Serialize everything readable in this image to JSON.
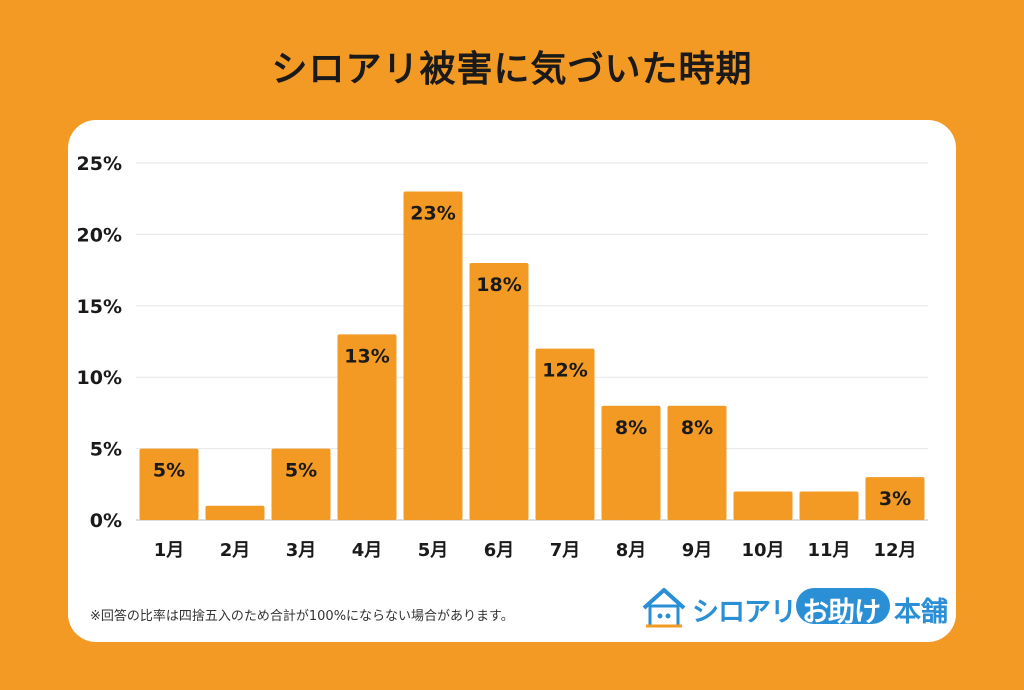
{
  "header": {
    "title": "シロアリ被害に気づいた時期"
  },
  "chart_data": {
    "type": "bar",
    "categories": [
      "1月",
      "2月",
      "3月",
      "4月",
      "5月",
      "6月",
      "7月",
      "8月",
      "9月",
      "10月",
      "11月",
      "12月"
    ],
    "values": [
      5,
      1,
      5,
      13,
      23,
      18,
      12,
      8,
      8,
      2,
      2,
      3
    ],
    "value_labels": [
      "5%",
      "",
      "5%",
      "13%",
      "23%",
      "18%",
      "12%",
      "8%",
      "8%",
      "",
      "",
      "3%"
    ],
    "yticks": [
      "0%",
      "5%",
      "10%",
      "15%",
      "20%",
      "25%"
    ],
    "ytick_values": [
      0,
      5,
      10,
      15,
      20,
      25
    ],
    "ylim": [
      0,
      25
    ],
    "grid": true,
    "bar_color": "#F39A24",
    "title": "シロアリ被害に気づいた時期",
    "xlabel": "",
    "ylabel": ""
  },
  "footer": {
    "note": "※回答の比率は四捨五入のため合計が100%にならない場合があります。",
    "logo_part1": "シロアリ",
    "logo_part2": "お助け",
    "logo_part3": "本舗",
    "logo_color": "#2b8fd6"
  }
}
